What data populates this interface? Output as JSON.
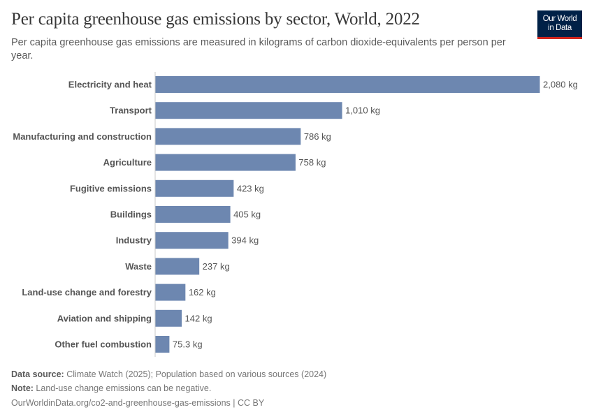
{
  "header": {
    "title": "Per capita greenhouse gas emissions by sector, World, 2022",
    "subtitle": "Per capita greenhouse gas emissions are measured in kilograms of carbon dioxide-equivalents per person per year.",
    "logo_text": "Our World in Data"
  },
  "footer": {
    "source_label": "Data source:",
    "source_text": " Climate Watch (2025); Population based on various sources (2024)",
    "note_label": "Note:",
    "note_text": " Land-use change emissions can be negative.",
    "url": "OurWorldinData.org/co2-and-greenhouse-gas-emissions | CC BY"
  },
  "chart_data": {
    "type": "bar",
    "orientation": "horizontal",
    "categories": [
      "Electricity and heat",
      "Transport",
      "Manufacturing and construction",
      "Agriculture",
      "Fugitive emissions",
      "Buildings",
      "Industry",
      "Waste",
      "Land-use change and forestry",
      "Aviation and shipping",
      "Other fuel combustion"
    ],
    "values": [
      2080,
      1010,
      786,
      758,
      423,
      405,
      394,
      237,
      162,
      142,
      75.3
    ],
    "data_labels": [
      "2,080 kg",
      "1,010 kg",
      "786 kg",
      "758 kg",
      "423 kg",
      "405 kg",
      "394 kg",
      "237 kg",
      "162 kg",
      "142 kg",
      "75.3 kg"
    ],
    "unit": "kg",
    "xlim": [
      0,
      2080
    ],
    "bar_color": "#6d87b0",
    "grid": false
  }
}
